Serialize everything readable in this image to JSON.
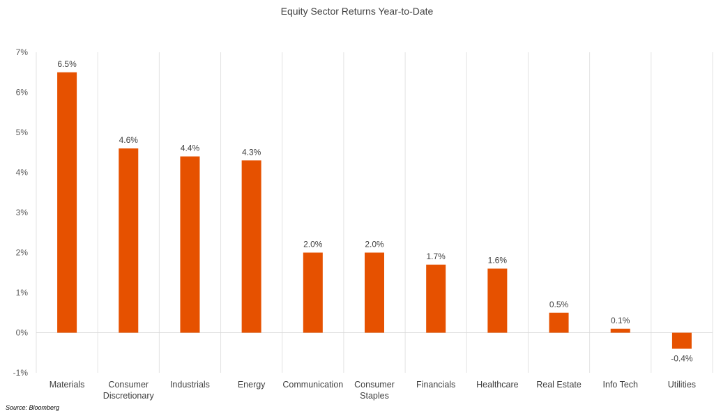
{
  "chart_data": {
    "type": "bar",
    "title": "Equity Sector Returns Year-to-Date",
    "categories": [
      [
        "Materials"
      ],
      [
        "Consumer",
        "Discretionary"
      ],
      [
        "Industrials"
      ],
      [
        "Energy"
      ],
      [
        "Communication"
      ],
      [
        "Consumer",
        "Staples"
      ],
      [
        "Financials"
      ],
      [
        "Healthcare"
      ],
      [
        "Real Estate"
      ],
      [
        "Info Tech"
      ],
      [
        "Utilities"
      ]
    ],
    "values": [
      6.5,
      4.6,
      4.4,
      4.3,
      2.0,
      2.0,
      1.7,
      1.6,
      0.5,
      0.1,
      -0.4
    ],
    "data_labels": [
      "6.5%",
      "4.6%",
      "4.4%",
      "4.3%",
      "2.0%",
      "2.0%",
      "1.7%",
      "1.6%",
      "0.5%",
      "0.1%",
      "-0.4%"
    ],
    "y_ticks": [
      {
        "value": 7,
        "label": "7%"
      },
      {
        "value": 6,
        "label": "6%"
      },
      {
        "value": 5,
        "label": "5%"
      },
      {
        "value": 4,
        "label": "4%"
      },
      {
        "value": 3,
        "label": "3%"
      },
      {
        "value": 2,
        "label": "2%"
      },
      {
        "value": 1,
        "label": "1%"
      },
      {
        "value": 0,
        "label": "0%"
      },
      {
        "value": -1,
        "label": "-1%"
      }
    ],
    "ylim": [
      -1,
      7
    ],
    "bar_color": "#E65100",
    "grid": "vertical category separators",
    "xlabel": "",
    "ylabel": ""
  },
  "source": "Source: Bloomberg"
}
